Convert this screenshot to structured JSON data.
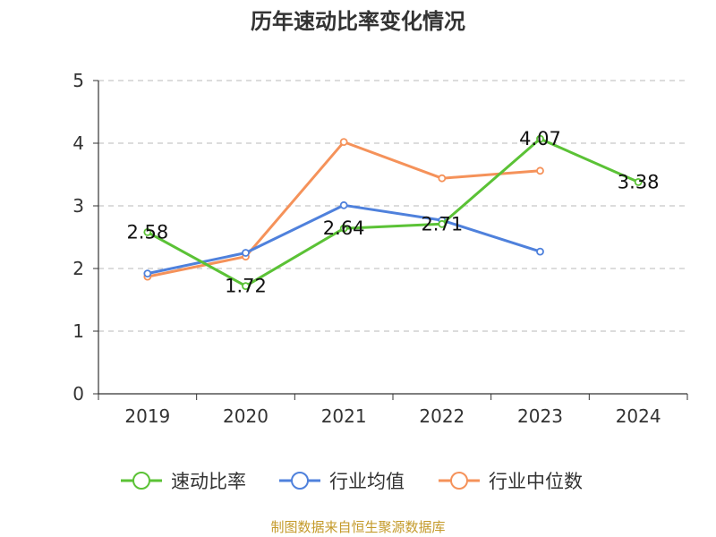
{
  "chart_data": {
    "type": "line",
    "title": "历年速动比率变化情况",
    "categories": [
      "2019",
      "2020",
      "2021",
      "2022",
      "2023",
      "2024"
    ],
    "ylim": [
      0,
      5
    ],
    "yticks": [
      0,
      1,
      2,
      3,
      4,
      5
    ],
    "grid": true,
    "legend_position": "bottom",
    "series": [
      {
        "name": "速动比率",
        "color": "#5bc236",
        "values": [
          2.58,
          1.72,
          2.64,
          2.71,
          4.07,
          3.38
        ],
        "labels": [
          "2.58",
          "1.72",
          "2.64",
          "2.71",
          "4.07",
          "3.38"
        ]
      },
      {
        "name": "行业均值",
        "color": "#4f81dc",
        "values": [
          1.92,
          2.25,
          3.01,
          2.77,
          2.27,
          null
        ]
      },
      {
        "name": "行业中位数",
        "color": "#f5925a",
        "values": [
          1.87,
          2.19,
          4.02,
          3.44,
          3.56,
          null
        ]
      }
    ],
    "source": "制图数据来自恒生聚源数据库"
  }
}
